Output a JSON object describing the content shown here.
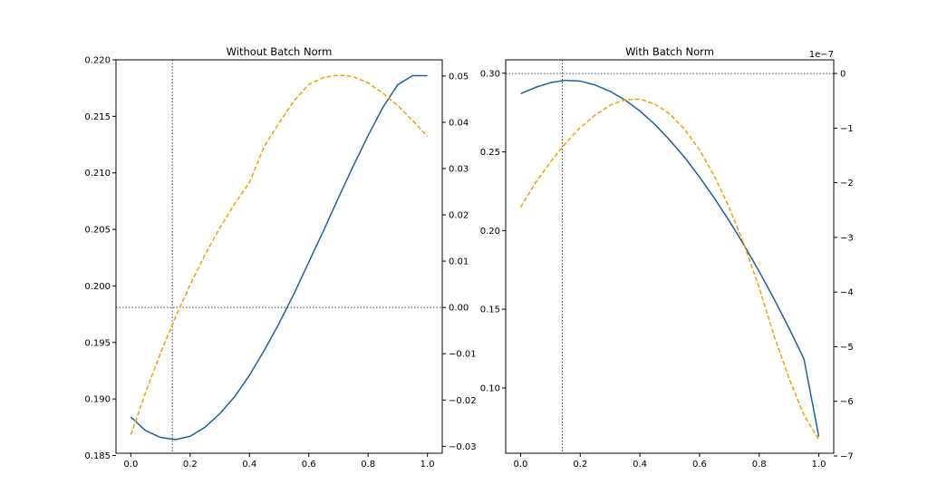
{
  "chart_data": [
    {
      "type": "line",
      "title": "Without Batch Norm",
      "xlim": [
        -0.05,
        1.05
      ],
      "ylim": [
        0.1852,
        0.22
      ],
      "ylim_right": [
        -0.0315,
        0.0535
      ],
      "x_ticks": [
        "0.0",
        "0.2",
        "0.4",
        "0.6",
        "0.8",
        "1.0"
      ],
      "x_tick_values": [
        0,
        0.2,
        0.4,
        0.6,
        0.8,
        1.0
      ],
      "y_ticks": [
        "0.185",
        "0.190",
        "0.195",
        "0.200",
        "0.205",
        "0.210",
        "0.215",
        "0.220"
      ],
      "y_tick_values": [
        0.185,
        0.19,
        0.195,
        0.2,
        0.205,
        0.21,
        0.215,
        0.22
      ],
      "y_right_ticks": [
        "−0.03",
        "−0.02",
        "−0.01",
        "0.00",
        "0.01",
        "0.02",
        "0.03",
        "0.04",
        "0.05"
      ],
      "y_right_tick_values": [
        -0.03,
        -0.02,
        -0.01,
        0,
        0.01,
        0.02,
        0.03,
        0.04,
        0.05
      ],
      "vline_x": 0.14,
      "hline_y_right": 0.0,
      "series": [
        {
          "axis": "left",
          "color": "#1f5f9f",
          "style": "solid",
          "x": [
            0,
            0.05,
            0.1,
            0.15,
            0.2,
            0.25,
            0.3,
            0.35,
            0.4,
            0.45,
            0.5,
            0.55,
            0.6,
            0.65,
            0.7,
            0.75,
            0.8,
            0.85,
            0.9,
            0.95,
            1.0
          ],
          "values": [
            0.1884,
            0.1872,
            0.1866,
            0.1864,
            0.1867,
            0.1875,
            0.1887,
            0.1902,
            0.1921,
            0.1943,
            0.1967,
            0.1993,
            0.2021,
            0.2049,
            0.2078,
            0.2106,
            0.2133,
            0.2158,
            0.2178,
            0.2186,
            0.2186
          ]
        },
        {
          "axis": "right",
          "color": "#f0a000",
          "style": "dashed",
          "x": [
            0,
            0.05,
            0.1,
            0.15,
            0.2,
            0.25,
            0.3,
            0.35,
            0.4,
            0.45,
            0.5,
            0.55,
            0.6,
            0.65,
            0.7,
            0.75,
            0.8,
            0.85,
            0.9,
            0.95,
            1.0
          ],
          "values": [
            -0.0275,
            -0.0183,
            -0.0099,
            -0.0022,
            0.0049,
            0.0114,
            0.0172,
            0.0224,
            0.027,
            0.0348,
            0.0399,
            0.0446,
            0.0482,
            0.0497,
            0.0502,
            0.0499,
            0.0485,
            0.0463,
            0.0436,
            0.0404,
            0.037
          ]
        }
      ]
    },
    {
      "type": "line",
      "title": "With Batch Norm",
      "xlim": [
        -0.05,
        1.05
      ],
      "ylim": [
        0.0585,
        0.3085
      ],
      "ylim_right": [
        -6.95,
        0.25
      ],
      "offset_label": "1e−7",
      "x_ticks": [
        "0.0",
        "0.2",
        "0.4",
        "0.6",
        "0.8",
        "1.0"
      ],
      "x_tick_values": [
        0,
        0.2,
        0.4,
        0.6,
        0.8,
        1.0
      ],
      "y_ticks": [
        "0.10",
        "0.15",
        "0.20",
        "0.25",
        "0.30"
      ],
      "y_tick_values": [
        0.1,
        0.15,
        0.2,
        0.25,
        0.3
      ],
      "y_right_ticks": [
        "−7",
        "−6",
        "−5",
        "−4",
        "−3",
        "−2",
        "−1",
        "0"
      ],
      "y_right_tick_values": [
        -7,
        -6,
        -5,
        -4,
        -3,
        -2,
        -1,
        0
      ],
      "vline_x": 0.14,
      "hline_y_right": 0.0,
      "series": [
        {
          "axis": "left",
          "color": "#1f5f9f",
          "style": "solid",
          "x": [
            0,
            0.05,
            0.1,
            0.15,
            0.2,
            0.25,
            0.3,
            0.35,
            0.4,
            0.45,
            0.5,
            0.55,
            0.6,
            0.65,
            0.7,
            0.75,
            0.8,
            0.85,
            0.9,
            0.95,
            1.0
          ],
          "values": [
            0.287,
            0.291,
            0.294,
            0.2955,
            0.295,
            0.2925,
            0.2885,
            0.283,
            0.276,
            0.2675,
            0.2575,
            0.2465,
            0.234,
            0.2205,
            0.206,
            0.1905,
            0.174,
            0.1565,
            0.138,
            0.1185,
            0.069
          ]
        },
        {
          "axis": "right",
          "color": "#f0a000",
          "style": "dashed",
          "x": [
            0,
            0.05,
            0.1,
            0.15,
            0.2,
            0.25,
            0.3,
            0.35,
            0.4,
            0.45,
            0.5,
            0.55,
            0.6,
            0.65,
            0.7,
            0.75,
            0.8,
            0.85,
            0.9,
            0.95,
            1.0
          ],
          "values": [
            -2.45,
            -2.0,
            -1.62,
            -1.28,
            -0.99,
            -0.76,
            -0.58,
            -0.48,
            -0.47,
            -0.56,
            -0.74,
            -1.02,
            -1.4,
            -1.88,
            -2.46,
            -3.14,
            -3.92,
            -4.8,
            -5.58,
            -6.25,
            -6.7
          ]
        }
      ]
    }
  ]
}
